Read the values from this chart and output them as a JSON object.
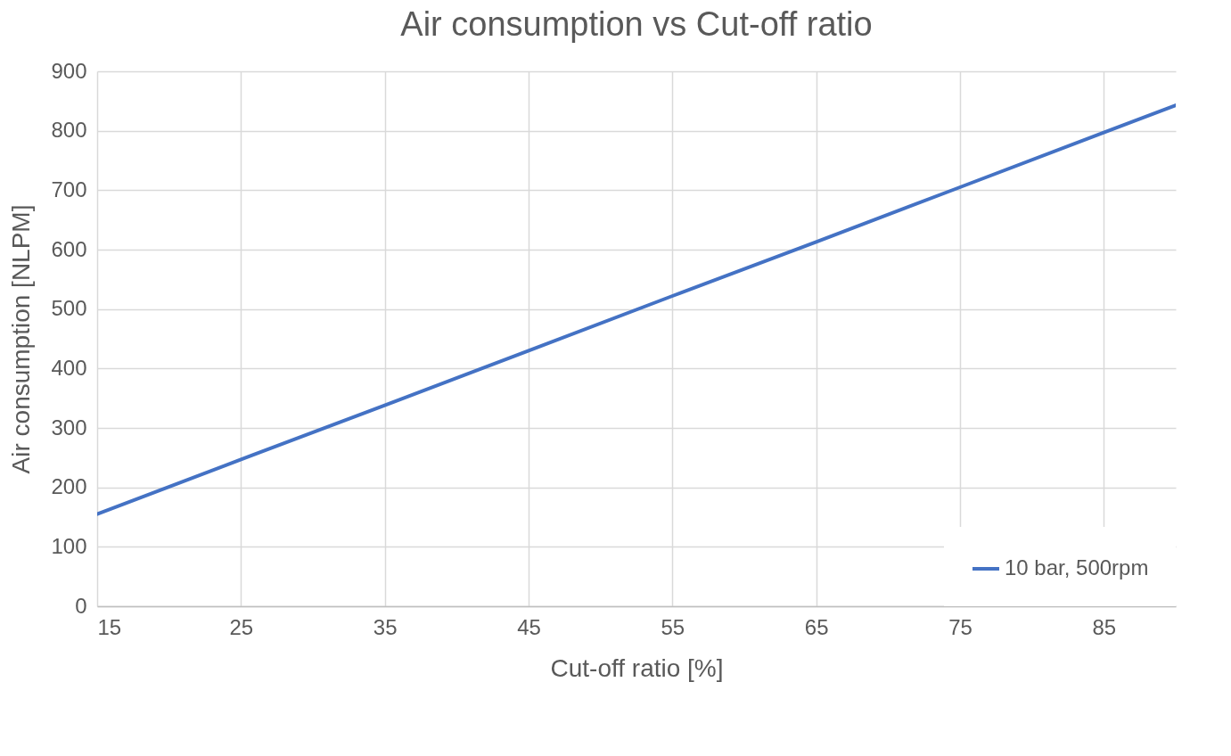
{
  "chart_data": {
    "type": "line",
    "title": "Air consumption vs Cut-off ratio",
    "xlabel": "Cut-off ratio [%]",
    "ylabel": "Air consumption [NLPM]",
    "x": [
      15,
      25,
      35,
      45,
      55,
      65,
      75,
      85,
      90
    ],
    "series": [
      {
        "name": "10 bar, 500rpm",
        "color": "#4472c4",
        "values": [
          155,
          247,
          338,
          430,
          522,
          613,
          705,
          797,
          843
        ]
      }
    ],
    "xlim": [
      15,
      90
    ],
    "xticks": [
      15,
      25,
      35,
      45,
      55,
      65,
      75,
      85
    ],
    "ylim": [
      0,
      900
    ],
    "yticks": [
      0,
      100,
      200,
      300,
      400,
      500,
      600,
      700,
      800,
      900
    ],
    "grid": true,
    "legend": "bottom right",
    "marker": "none",
    "line_style": "solid"
  }
}
